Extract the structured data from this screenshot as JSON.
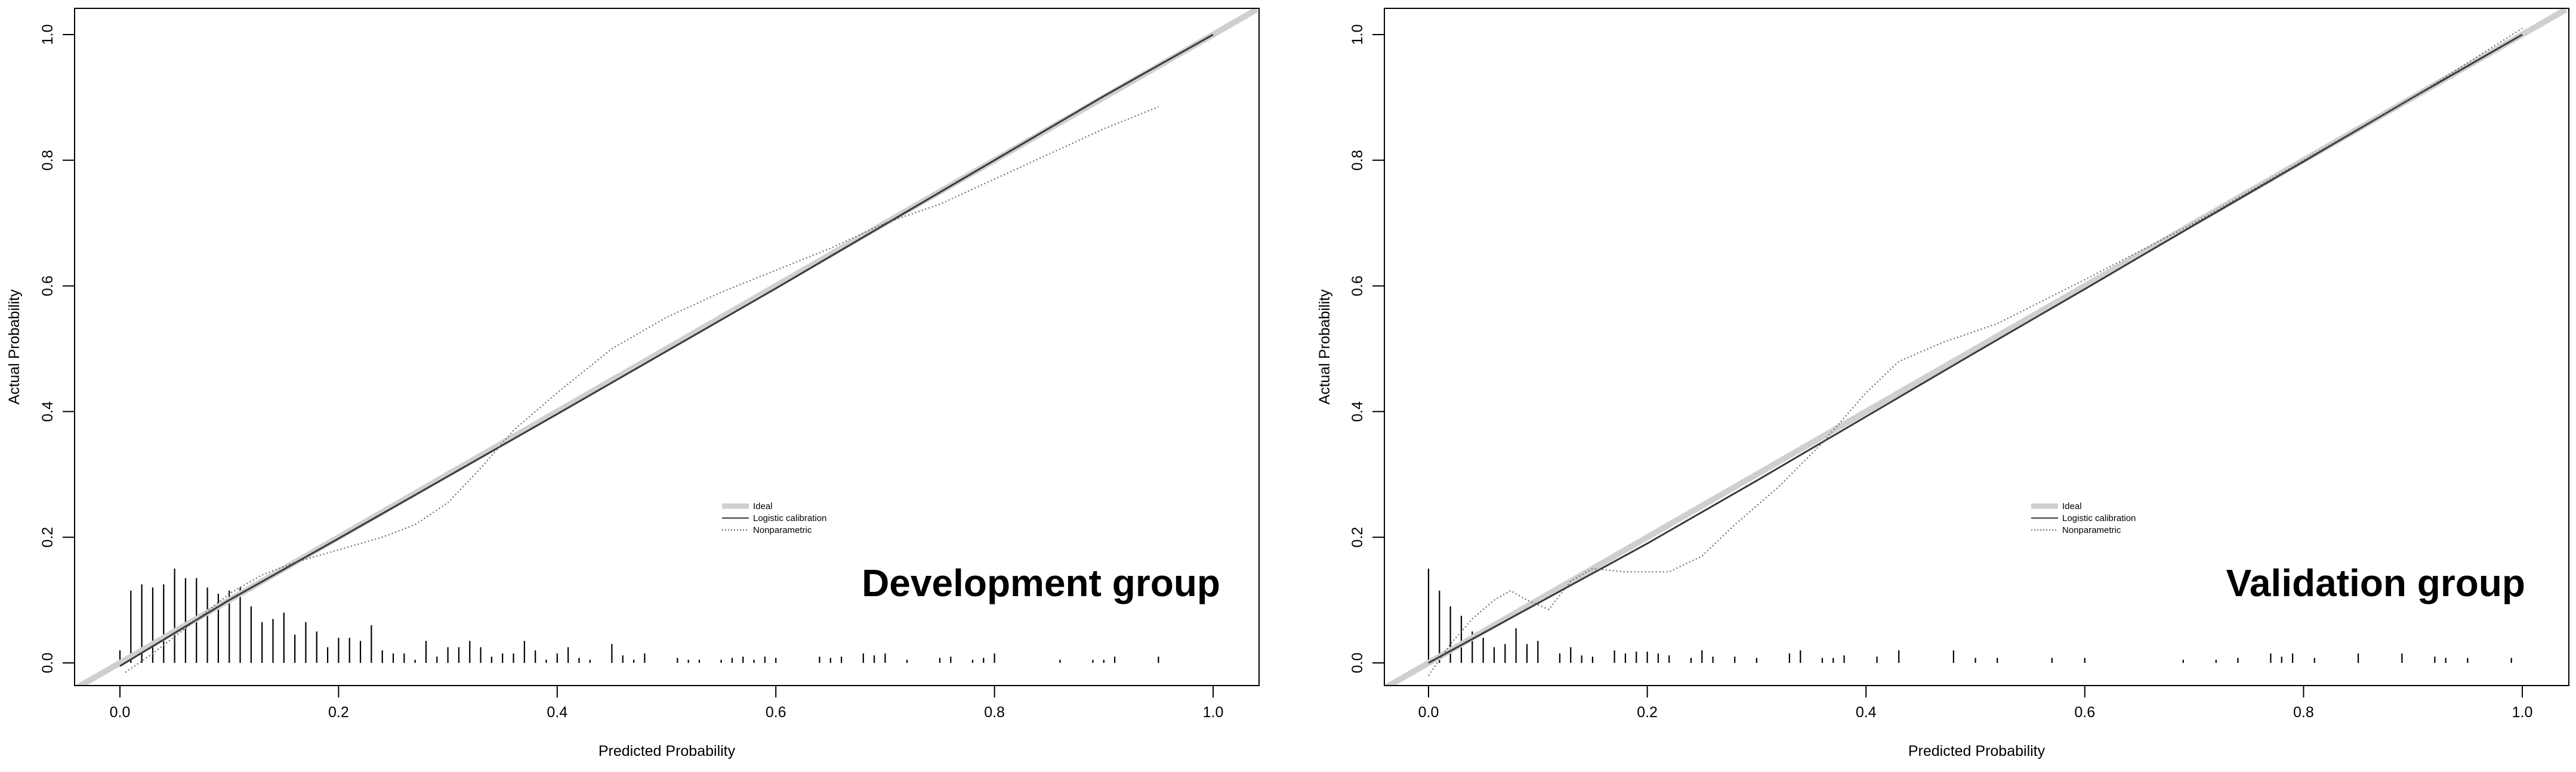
{
  "chart_data": [
    {
      "type": "line",
      "title": "",
      "annotation": "Development group",
      "xlabel": "Predicted Probability",
      "ylabel": "Actual Probability",
      "xlim": [
        -0.04,
        1.04
      ],
      "ylim": [
        -0.04,
        1.04
      ],
      "xticks": [
        "0.0",
        "0.2",
        "0.4",
        "0.6",
        "0.8",
        "1.0"
      ],
      "yticks": [
        "0.0",
        "0.2",
        "0.4",
        "0.6",
        "0.8",
        "1.0"
      ],
      "grid": false,
      "legend_position": "center-right",
      "legend": [
        "Ideal",
        "Logistic calibration",
        "Nonparametric"
      ],
      "series": [
        {
          "name": "Ideal",
          "x": [
            -0.04,
            1.04
          ],
          "y": [
            -0.04,
            1.04
          ]
        },
        {
          "name": "Logistic calibration",
          "x": [
            0.0,
            0.1,
            0.2,
            0.3,
            0.4,
            0.5,
            0.6,
            0.7,
            0.8,
            0.9,
            1.0
          ],
          "y": [
            -0.005,
            0.1,
            0.198,
            0.297,
            0.396,
            0.496,
            0.596,
            0.698,
            0.8,
            0.902,
            1.0
          ]
        },
        {
          "name": "Nonparametric",
          "x": [
            0.005,
            0.03,
            0.06,
            0.1,
            0.13,
            0.16,
            0.2,
            0.24,
            0.27,
            0.3,
            0.33,
            0.36,
            0.4,
            0.45,
            0.5,
            0.55,
            0.6,
            0.65,
            0.7,
            0.75,
            0.8,
            0.85,
            0.9,
            0.95
          ],
          "y": [
            -0.015,
            0.015,
            0.055,
            0.11,
            0.14,
            0.16,
            0.18,
            0.2,
            0.22,
            0.255,
            0.31,
            0.37,
            0.43,
            0.5,
            0.55,
            0.59,
            0.625,
            0.66,
            0.7,
            0.73,
            0.77,
            0.81,
            0.85,
            0.885
          ]
        }
      ],
      "histogram": {
        "x": [
          0.0,
          0.01,
          0.02,
          0.03,
          0.04,
          0.05,
          0.06,
          0.07,
          0.08,
          0.09,
          0.1,
          0.11,
          0.12,
          0.13,
          0.14,
          0.15,
          0.16,
          0.17,
          0.18,
          0.19,
          0.2,
          0.21,
          0.22,
          0.23,
          0.24,
          0.25,
          0.26,
          0.27,
          0.28,
          0.29,
          0.3,
          0.31,
          0.32,
          0.33,
          0.34,
          0.35,
          0.36,
          0.37,
          0.38,
          0.39,
          0.4,
          0.41,
          0.42,
          0.43,
          0.45,
          0.46,
          0.47,
          0.48,
          0.51,
          0.52,
          0.53,
          0.55,
          0.56,
          0.57,
          0.58,
          0.59,
          0.6,
          0.64,
          0.65,
          0.66,
          0.68,
          0.69,
          0.7,
          0.72,
          0.75,
          0.76,
          0.78,
          0.79,
          0.8,
          0.86,
          0.89,
          0.9,
          0.91,
          0.95
        ],
        "y": [
          0.02,
          0.115,
          0.125,
          0.12,
          0.125,
          0.15,
          0.135,
          0.135,
          0.12,
          0.11,
          0.115,
          0.12,
          0.09,
          0.065,
          0.07,
          0.08,
          0.045,
          0.065,
          0.05,
          0.025,
          0.04,
          0.04,
          0.035,
          0.06,
          0.02,
          0.015,
          0.015,
          0.005,
          0.035,
          0.01,
          0.025,
          0.025,
          0.035,
          0.025,
          0.01,
          0.015,
          0.015,
          0.035,
          0.02,
          0.005,
          0.015,
          0.025,
          0.008,
          0.005,
          0.03,
          0.012,
          0.005,
          0.015,
          0.008,
          0.005,
          0.005,
          0.005,
          0.008,
          0.01,
          0.005,
          0.01,
          0.008,
          0.01,
          0.008,
          0.01,
          0.015,
          0.012,
          0.015,
          0.005,
          0.008,
          0.01,
          0.005,
          0.008,
          0.015,
          0.005,
          0.005,
          0.005,
          0.01,
          0.01
        ]
      }
    },
    {
      "type": "line",
      "title": "",
      "annotation": "Validation group",
      "xlabel": "Predicted Probability",
      "ylabel": "Actual Probability",
      "xlim": [
        -0.04,
        1.04
      ],
      "ylim": [
        -0.04,
        1.04
      ],
      "xticks": [
        "0.0",
        "0.2",
        "0.4",
        "0.6",
        "0.8",
        "1.0"
      ],
      "yticks": [
        "0.0",
        "0.2",
        "0.4",
        "0.6",
        "0.8",
        "1.0"
      ],
      "grid": false,
      "legend_position": "center-right",
      "legend": [
        "Ideal",
        "Logistic calibration",
        "Nonparametric"
      ],
      "series": [
        {
          "name": "Ideal",
          "x": [
            -0.04,
            1.04
          ],
          "y": [
            -0.04,
            1.04
          ]
        },
        {
          "name": "Logistic calibration",
          "x": [
            0.0,
            0.1,
            0.2,
            0.3,
            0.4,
            0.5,
            0.6,
            0.7,
            0.8,
            0.9,
            1.0
          ],
          "y": [
            0.0,
            0.095,
            0.19,
            0.29,
            0.392,
            0.494,
            0.595,
            0.697,
            0.798,
            0.9,
            1.0
          ]
        },
        {
          "name": "Nonparametric",
          "x": [
            0.0,
            0.02,
            0.04,
            0.06,
            0.075,
            0.09,
            0.11,
            0.13,
            0.15,
            0.18,
            0.22,
            0.25,
            0.28,
            0.32,
            0.36,
            0.4,
            0.43,
            0.47,
            0.52,
            0.6,
            0.7,
            0.8,
            0.9,
            1.0
          ],
          "y": [
            -0.02,
            0.03,
            0.07,
            0.1,
            0.115,
            0.1,
            0.085,
            0.13,
            0.15,
            0.145,
            0.145,
            0.17,
            0.22,
            0.28,
            0.35,
            0.43,
            0.48,
            0.51,
            0.54,
            0.61,
            0.7,
            0.8,
            0.9,
            1.01
          ]
        }
      ],
      "histogram": {
        "x": [
          0.0,
          0.01,
          0.02,
          0.03,
          0.04,
          0.05,
          0.06,
          0.07,
          0.08,
          0.09,
          0.1,
          0.12,
          0.13,
          0.14,
          0.15,
          0.17,
          0.18,
          0.19,
          0.2,
          0.21,
          0.22,
          0.24,
          0.25,
          0.26,
          0.28,
          0.3,
          0.33,
          0.34,
          0.36,
          0.37,
          0.38,
          0.41,
          0.43,
          0.48,
          0.5,
          0.52,
          0.57,
          0.6,
          0.69,
          0.72,
          0.74,
          0.77,
          0.78,
          0.79,
          0.81,
          0.85,
          0.89,
          0.92,
          0.93,
          0.95,
          0.99
        ],
        "y": [
          0.15,
          0.115,
          0.09,
          0.075,
          0.05,
          0.04,
          0.025,
          0.03,
          0.055,
          0.03,
          0.035,
          0.015,
          0.025,
          0.012,
          0.01,
          0.02,
          0.015,
          0.018,
          0.018,
          0.015,
          0.012,
          0.008,
          0.02,
          0.01,
          0.01,
          0.008,
          0.015,
          0.02,
          0.008,
          0.008,
          0.012,
          0.01,
          0.02,
          0.02,
          0.008,
          0.008,
          0.008,
          0.008,
          0.005,
          0.005,
          0.008,
          0.015,
          0.01,
          0.015,
          0.008,
          0.015,
          0.015,
          0.01,
          0.008,
          0.008,
          0.008
        ]
      }
    }
  ]
}
